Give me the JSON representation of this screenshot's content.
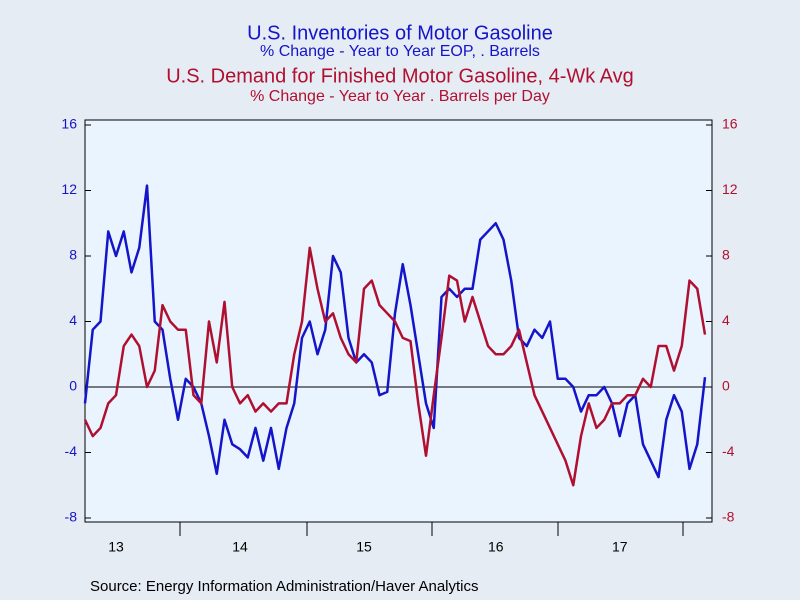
{
  "chart_data": {
    "type": "line",
    "series": [
      {
        "name": "U.S. Inventories of Motor Gasoline",
        "subtitle": "% Change - Year to Year    EOP, . Barrels",
        "color": "#1414c8",
        "axis": "y",
        "values": [
          -1,
          3.5,
          4,
          9.5,
          8,
          9.5,
          7,
          8.5,
          12.3,
          4,
          3.5,
          0.5,
          -2,
          0.5,
          0,
          -1,
          -3,
          -5.3,
          -2,
          -3.5,
          -3.8,
          -4.3,
          -2.5,
          -4.5,
          -2.5,
          -5,
          -2.5,
          -1,
          3,
          4,
          2,
          3.5,
          8,
          7,
          3,
          1.5,
          2,
          1.5,
          -0.5,
          -0.3,
          4.5,
          7.5,
          5,
          2,
          -1,
          -2.5,
          5.5,
          6,
          5.5,
          6,
          6,
          9,
          9.5,
          10,
          9,
          6.5,
          3,
          2.5,
          3.5,
          3,
          4,
          0.5,
          0.5,
          0,
          -1.5,
          -0.5,
          -0.5,
          0,
          -1,
          -3,
          -1,
          -0.5,
          -3.5,
          -4.5,
          -5.5,
          -2,
          -0.5,
          -1.5,
          -5,
          -3.5,
          0.6
        ]
      },
      {
        "name": "U.S. Demand for Finished Motor Gasoline, 4-Wk Avg",
        "subtitle": "% Change - Year to Year    . Barrels per Day",
        "color": "#b01030",
        "axis": "y2",
        "values": [
          -2,
          -3,
          -2.5,
          -1,
          -0.5,
          2.5,
          3.2,
          2.5,
          0,
          1,
          5,
          4,
          3.5,
          3.5,
          -0.5,
          -1,
          4,
          1.5,
          5.2,
          0,
          -1,
          -0.5,
          -1.5,
          -1,
          -1.5,
          -1,
          -1,
          2,
          4,
          8.5,
          6,
          4,
          4.5,
          3,
          2,
          1.5,
          6,
          6.5,
          5,
          4.5,
          4,
          3,
          2.8,
          -1,
          -4.2,
          -0.5,
          3,
          6.8,
          6.5,
          4,
          5.5,
          4,
          2.5,
          2,
          2,
          2.5,
          3.5,
          1.5,
          -0.5,
          -1.5,
          -2.5,
          -3.5,
          -4.5,
          -6,
          -3,
          -1,
          -2.5,
          -2,
          -1,
          -1,
          -0.5,
          -0.5,
          0.5,
          0,
          2.5,
          2.5,
          1,
          2.5,
          6.5,
          6,
          3.2
        ]
      }
    ],
    "categories": [
      null,
      null,
      null,
      null,
      "13",
      null,
      null,
      null,
      null,
      null,
      null,
      null,
      null,
      null,
      null,
      null,
      null,
      null,
      null,
      null,
      "14",
      null,
      null,
      null,
      null,
      null,
      null,
      null,
      null,
      null,
      null,
      null,
      null,
      null,
      null,
      null,
      "15",
      null,
      null,
      null,
      null,
      null,
      null,
      null,
      null,
      null,
      null,
      null,
      null,
      null,
      null,
      null,
      null,
      "16",
      null,
      null,
      null,
      null,
      null,
      null,
      null,
      null,
      null,
      null,
      null,
      null,
      null,
      null,
      null,
      "17",
      null,
      null,
      null,
      null,
      null,
      null,
      null,
      null,
      null,
      null,
      null
    ],
    "ylim": [
      -8,
      16
    ],
    "yticks": [
      -8,
      -4,
      0,
      4,
      8,
      12,
      16
    ],
    "y2lim": [
      -8,
      16
    ],
    "y2ticks": [
      -8,
      -4,
      0,
      4,
      8,
      12,
      16
    ],
    "source": "Source:  Energy Information Administration/Haver Analytics"
  }
}
